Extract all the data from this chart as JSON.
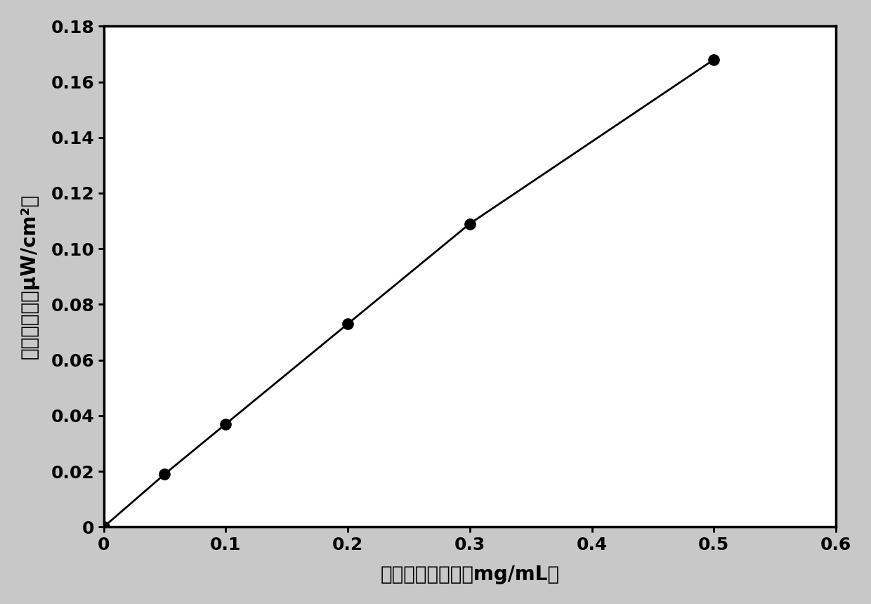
{
  "x": [
    0,
    0.05,
    0.1,
    0.2,
    0.3,
    0.5
  ],
  "y": [
    0,
    0.019,
    0.037,
    0.073,
    0.109,
    0.168
  ],
  "xlabel": "量子点溶液浓度（mg/mL）",
  "ylabel": "荧光辐照度（μW/cm²）",
  "xlim": [
    0,
    0.6
  ],
  "ylim": [
    0,
    0.18
  ],
  "xticks": [
    0,
    0.1,
    0.2,
    0.3,
    0.4,
    0.5,
    0.6
  ],
  "yticks": [
    0,
    0.02,
    0.04,
    0.06,
    0.08,
    0.1,
    0.12,
    0.14,
    0.16,
    0.18
  ],
  "line_color": "#000000",
  "marker_color": "#000000",
  "marker_size": 11,
  "linewidth": 2.0,
  "background_color": "#ffffff",
  "outer_background": "#c8c8c8",
  "xlabel_fontsize": 20,
  "ylabel_fontsize": 20,
  "tick_fontsize": 18,
  "tick_fontweight": "bold"
}
